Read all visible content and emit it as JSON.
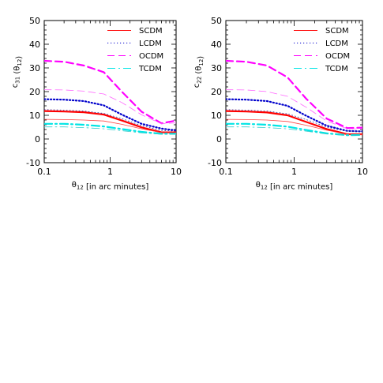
{
  "chart_data": [
    {
      "type": "line",
      "ylabel": "c31 (θ12)",
      "xlabel": "θ12 [in arc minutes]",
      "xscale": "log",
      "xlim": [
        0.1,
        10
      ],
      "ylim": [
        -10,
        50
      ],
      "xticks": [
        "0.1",
        "1",
        "10"
      ],
      "yticks": [
        "-10",
        "0",
        "10",
        "20",
        "30",
        "40",
        "50"
      ],
      "legend_position": "top-right",
      "legend": [
        {
          "name": "SCDM",
          "color": "#ff0000",
          "dash": "solid"
        },
        {
          "name": "LCDM",
          "color": "#0000cc",
          "dash": "dotted"
        },
        {
          "name": "OCDM",
          "color": "#ff00ff",
          "dash": "dashed"
        },
        {
          "name": "TCDM",
          "color": "#00e5e5",
          "dash": "dashdot"
        }
      ],
      "x": [
        0.1,
        0.2,
        0.4,
        0.8,
        1.5,
        3,
        6,
        10
      ],
      "series": [
        {
          "name": "SCDM",
          "color": "#ff0000",
          "dash": "solid",
          "width": 2.2,
          "values": [
            11.8,
            11.6,
            11.3,
            10.3,
            7.8,
            4.9,
            2.8,
            2.8
          ]
        },
        {
          "name": "SCDM",
          "color": "#ff4444",
          "dash": "solid",
          "width": 0.8,
          "values": [
            8.3,
            8.2,
            8.0,
            7.6,
            6.2,
            4.3,
            2.7,
            2.6
          ]
        },
        {
          "name": "LCDM",
          "color": "#0000cc",
          "dash": "dotted",
          "width": 2.2,
          "values": [
            16.8,
            16.6,
            16.0,
            14.2,
            10.3,
            6.4,
            4.4,
            3.6
          ]
        },
        {
          "name": "LCDM",
          "color": "#333399",
          "dash": "dotted",
          "width": 0.8,
          "values": [
            12.4,
            12.2,
            11.8,
            10.8,
            8.6,
            5.6,
            3.6,
            3.3
          ]
        },
        {
          "name": "OCDM",
          "color": "#ff00ff",
          "dash": "dashed",
          "width": 2.2,
          "values": [
            33.0,
            32.6,
            31.0,
            28.2,
            20.0,
            11.5,
            6.6,
            7.8
          ]
        },
        {
          "name": "OCDM",
          "color": "#ff66ff",
          "dash": "dashed",
          "width": 0.8,
          "values": [
            20.8,
            20.7,
            20.2,
            19.0,
            15.4,
            10.2,
            6.4,
            6.8
          ]
        },
        {
          "name": "TCDM",
          "color": "#00e5e5",
          "dash": "dashdot",
          "width": 2.2,
          "values": [
            6.4,
            6.4,
            6.0,
            5.3,
            4.2,
            3.0,
            2.2,
            2.2
          ]
        },
        {
          "name": "TCDM",
          "color": "#33cccc",
          "dash": "dashdot",
          "width": 0.8,
          "values": [
            5.1,
            5.1,
            4.8,
            4.3,
            3.5,
            2.6,
            2.0,
            2.0
          ]
        }
      ]
    },
    {
      "type": "line",
      "ylabel": "c22 (θ12)",
      "xlabel": "θ12 [in arc minutes]",
      "xscale": "log",
      "xlim": [
        0.1,
        10
      ],
      "ylim": [
        -10,
        50
      ],
      "xticks": [
        "0.1",
        "1",
        "10"
      ],
      "yticks": [
        "-10",
        "0",
        "10",
        "20",
        "30",
        "40",
        "50"
      ],
      "legend_position": "top-right",
      "legend": [
        {
          "name": "SCDM",
          "color": "#ff0000",
          "dash": "solid"
        },
        {
          "name": "LCDM",
          "color": "#0000cc",
          "dash": "dotted"
        },
        {
          "name": "OCDM",
          "color": "#ff00ff",
          "dash": "dashed"
        },
        {
          "name": "TCDM",
          "color": "#00e5e5",
          "dash": "dashdot"
        }
      ],
      "x": [
        0.1,
        0.2,
        0.4,
        0.8,
        1.5,
        3,
        6,
        10
      ],
      "series": [
        {
          "name": "SCDM",
          "color": "#ff0000",
          "dash": "solid",
          "width": 2.2,
          "values": [
            11.8,
            11.6,
            11.2,
            10.0,
            7.2,
            4.2,
            2.0,
            2.0
          ]
        },
        {
          "name": "SCDM",
          "color": "#ff4444",
          "dash": "solid",
          "width": 0.8,
          "values": [
            8.3,
            8.2,
            8.0,
            7.4,
            5.8,
            3.7,
            2.0,
            1.9
          ]
        },
        {
          "name": "LCDM",
          "color": "#0000cc",
          "dash": "dotted",
          "width": 2.2,
          "values": [
            16.8,
            16.6,
            16.0,
            14.0,
            9.8,
            5.6,
            3.4,
            3.2
          ]
        },
        {
          "name": "LCDM",
          "color": "#333399",
          "dash": "dotted",
          "width": 0.8,
          "values": [
            12.4,
            12.2,
            11.8,
            10.6,
            8.2,
            5.0,
            3.2,
            3.0
          ]
        },
        {
          "name": "OCDM",
          "color": "#ff00ff",
          "dash": "dashed",
          "width": 2.2,
          "values": [
            33.0,
            32.6,
            31.0,
            26.0,
            17.0,
            8.6,
            4.6,
            4.8
          ]
        },
        {
          "name": "OCDM",
          "color": "#ff66ff",
          "dash": "dashed",
          "width": 0.8,
          "values": [
            20.8,
            20.7,
            20.0,
            18.0,
            13.4,
            7.6,
            4.3,
            4.2
          ]
        },
        {
          "name": "TCDM",
          "color": "#00e5e5",
          "dash": "dashdot",
          "width": 2.2,
          "values": [
            6.4,
            6.4,
            6.0,
            5.2,
            3.8,
            2.4,
            1.6,
            1.7
          ]
        },
        {
          "name": "TCDM",
          "color": "#33cccc",
          "dash": "dashdot",
          "width": 0.8,
          "values": [
            5.1,
            5.1,
            4.8,
            4.3,
            3.3,
            2.1,
            1.5,
            1.6
          ]
        }
      ]
    }
  ]
}
